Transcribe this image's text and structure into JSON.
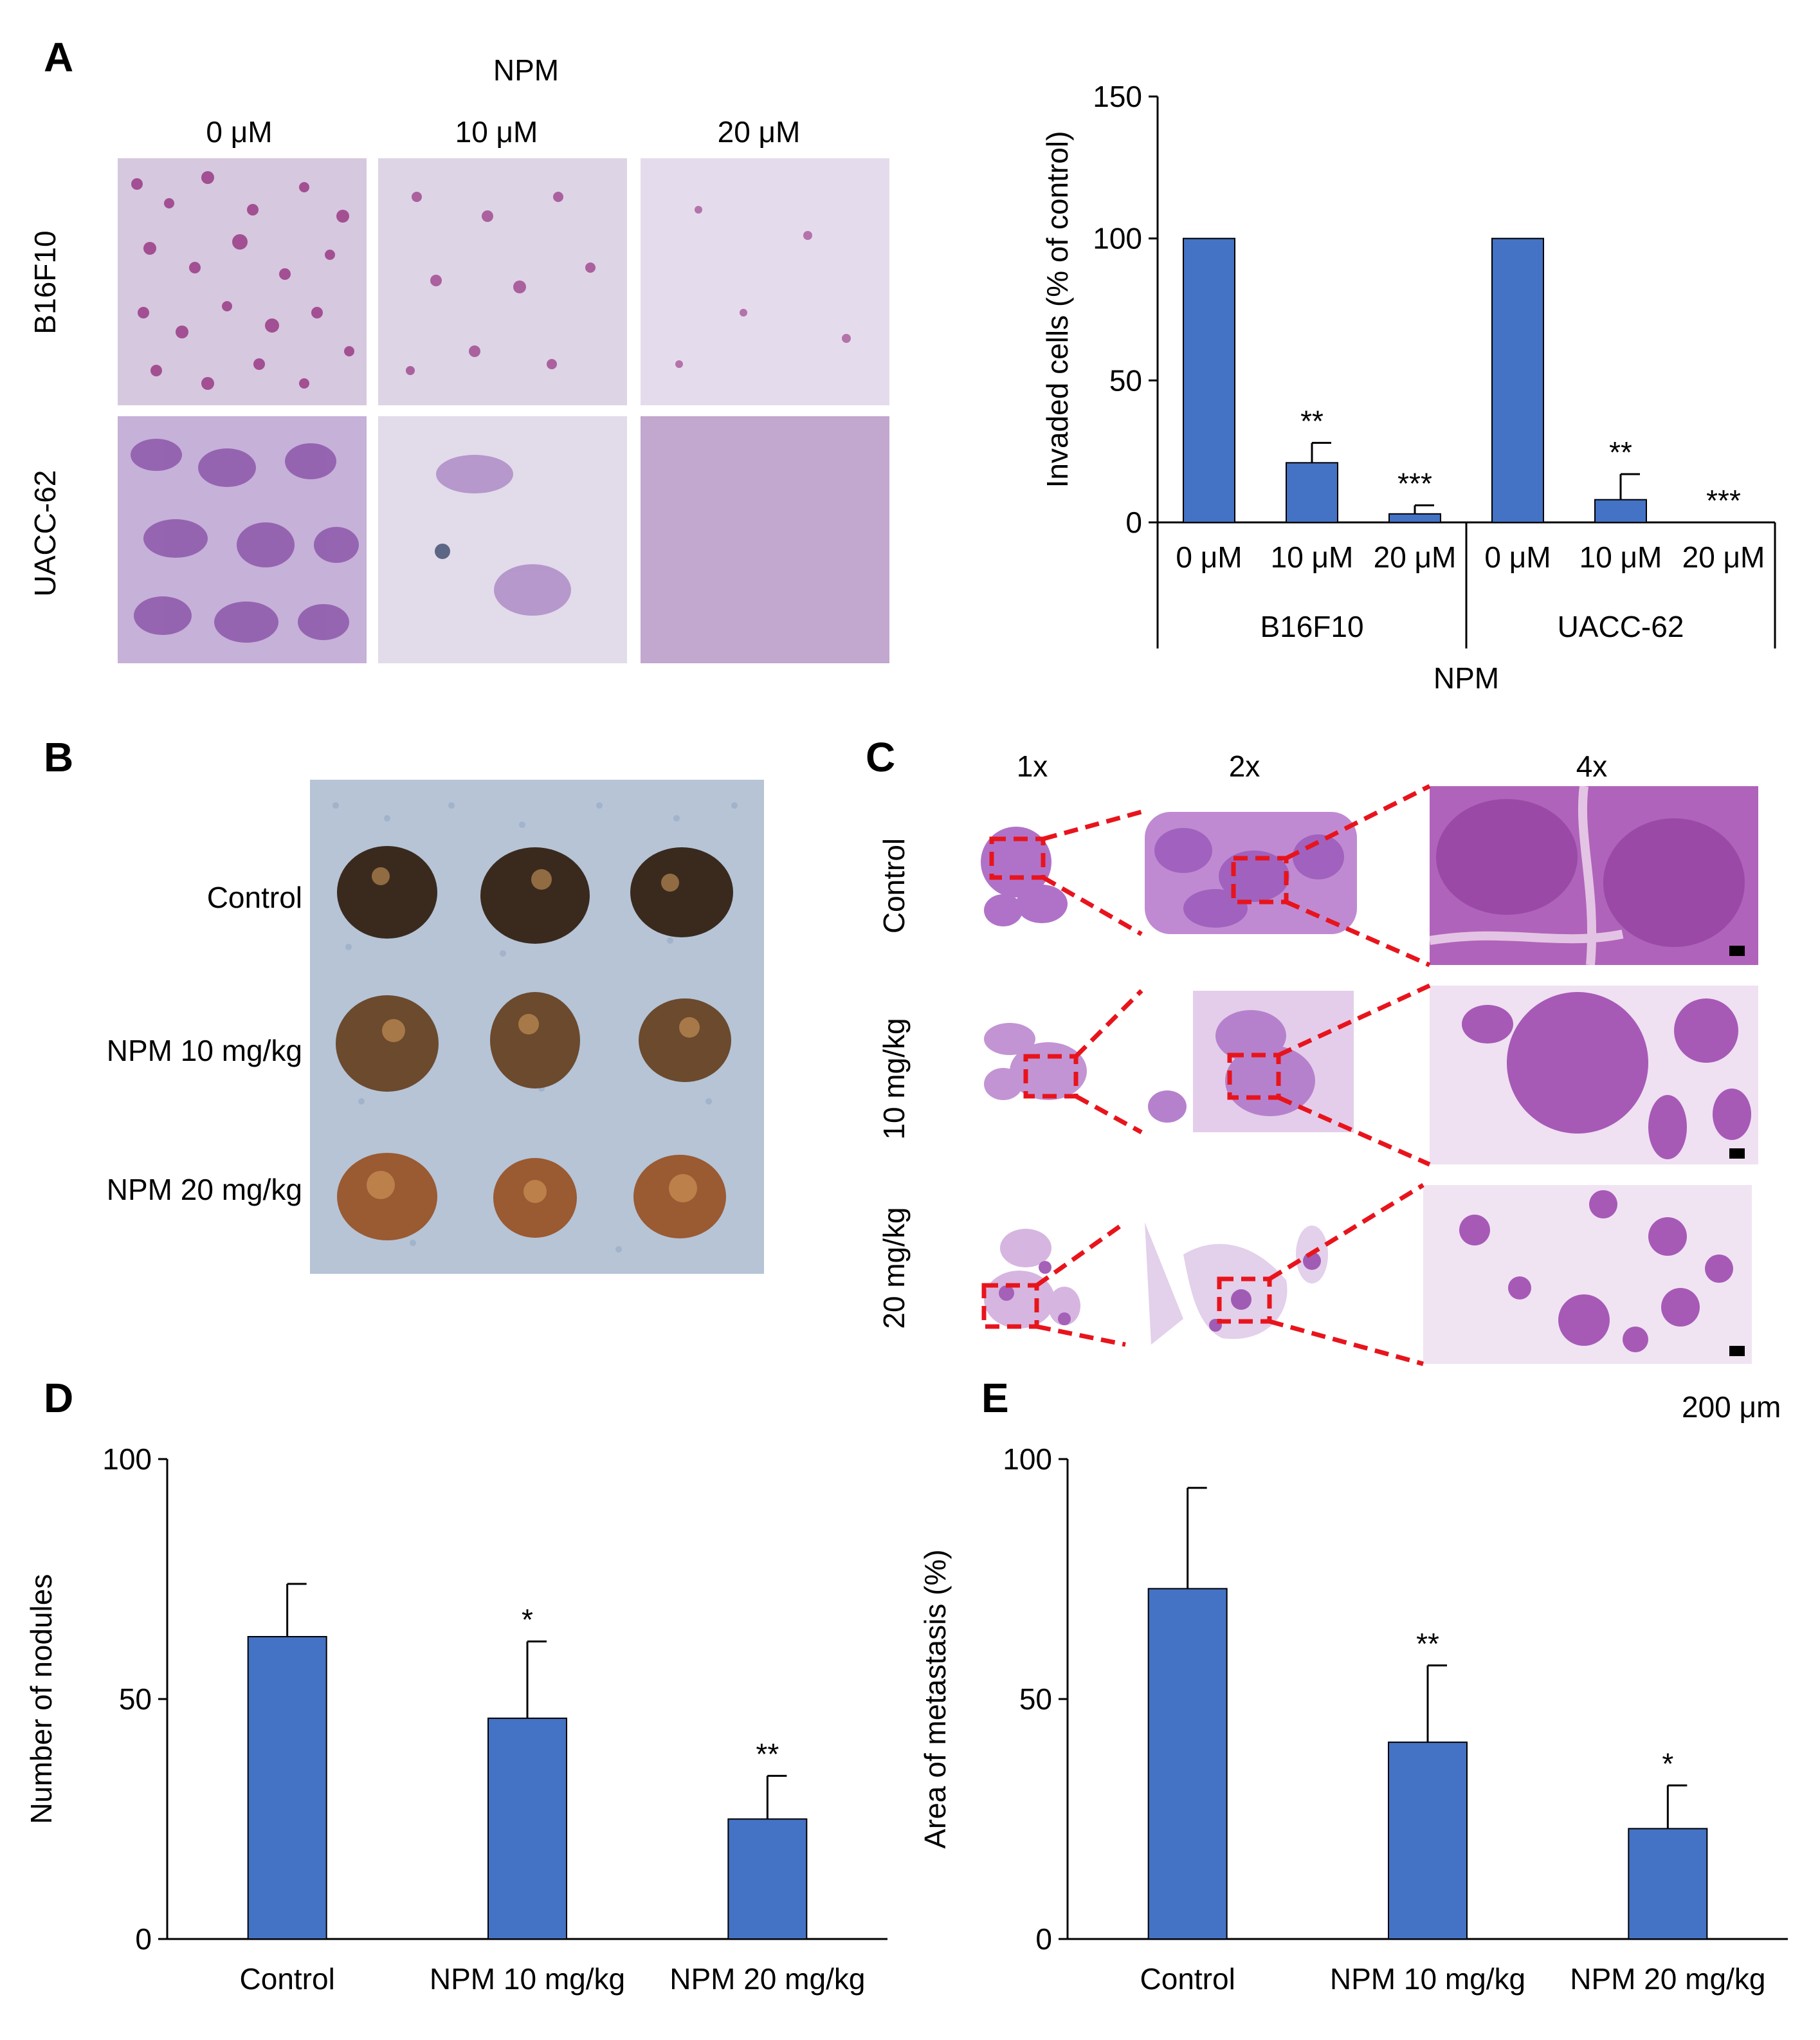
{
  "panels": {
    "A": {
      "letter": "A",
      "treatment_label": "NPM",
      "columns": [
        "0 μM",
        "10 μM",
        "20 μM"
      ],
      "rows": [
        "B16F10",
        "UACC-62"
      ]
    },
    "B": {
      "letter": "B",
      "rows": [
        "Control",
        "NPM 10 mg/kg",
        "NPM 20 mg/kg"
      ]
    },
    "C": {
      "letter": "C",
      "columns": [
        "1x",
        "2x",
        "4x"
      ],
      "rows": [
        "Control",
        "10 mg/kg",
        "20 mg/kg"
      ],
      "scale_bar": "200 μm"
    },
    "D": {
      "letter": "D"
    },
    "E": {
      "letter": "E"
    }
  },
  "colors": {
    "bar": "#4472c4",
    "highlight_box": "#e8141c",
    "stain_purple": "#9a4a9e",
    "stain_light": "#d9cfe6",
    "lung_tissue": "#7a4a2a"
  },
  "chart_data": [
    {
      "id": "A-chart",
      "type": "bar",
      "ylabel": "Invaded cells (% of control)",
      "xlabel": "NPM",
      "ylim": [
        0,
        150
      ],
      "yticks": [
        0,
        50,
        100,
        150
      ],
      "groups": [
        "B16F10",
        "UACC-62"
      ],
      "categories": [
        "0 μM",
        "10 μM",
        "20 μM",
        "0 μM",
        "10 μM",
        "20 μM"
      ],
      "values": [
        100,
        21,
        3,
        100,
        8,
        0
      ],
      "errors": [
        0,
        7,
        3,
        0,
        9,
        0
      ],
      "significance": [
        "",
        "**",
        "***",
        "",
        "**",
        "***"
      ]
    },
    {
      "id": "D-chart",
      "type": "bar",
      "ylabel": "Number of nodules",
      "xlabel": "",
      "ylim": [
        0,
        100
      ],
      "yticks": [
        0,
        50,
        100
      ],
      "categories": [
        "Control",
        "NPM 10 mg/kg",
        "NPM 20 mg/kg"
      ],
      "values": [
        63,
        46,
        25
      ],
      "errors": [
        11,
        16,
        9
      ],
      "significance": [
        "",
        "*",
        "**"
      ]
    },
    {
      "id": "E-chart",
      "type": "bar",
      "ylabel": "Area of metastasis (%)",
      "xlabel": "",
      "ylim": [
        0,
        100
      ],
      "yticks": [
        0,
        50,
        100
      ],
      "categories": [
        "Control",
        "NPM 10 mg/kg",
        "NPM 20 mg/kg"
      ],
      "values": [
        73,
        41,
        23
      ],
      "errors": [
        21,
        16,
        9
      ],
      "significance": [
        "",
        "**",
        "*"
      ]
    }
  ]
}
